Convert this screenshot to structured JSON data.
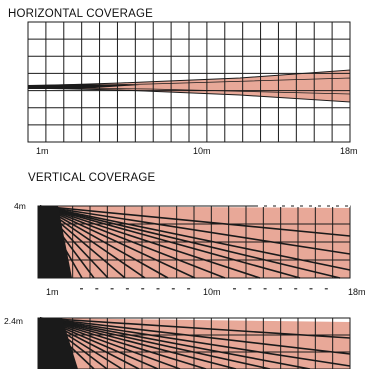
{
  "horizontal": {
    "title": "HORIZONTAL COVERAGE",
    "ticks": [
      "1m",
      "10m",
      "18m"
    ]
  },
  "vertical": {
    "title": "VERTICAL COVERAGE",
    "height_label": "4m",
    "ticks": [
      "1m",
      "10m",
      "18m"
    ]
  },
  "vertical_low": {
    "height_label": "2.4m"
  },
  "colors": {
    "zone_fill": "#e8a898",
    "zone_line": "#1a1a1a",
    "grid": "#1a1a1a",
    "background": "#ffffff"
  }
}
